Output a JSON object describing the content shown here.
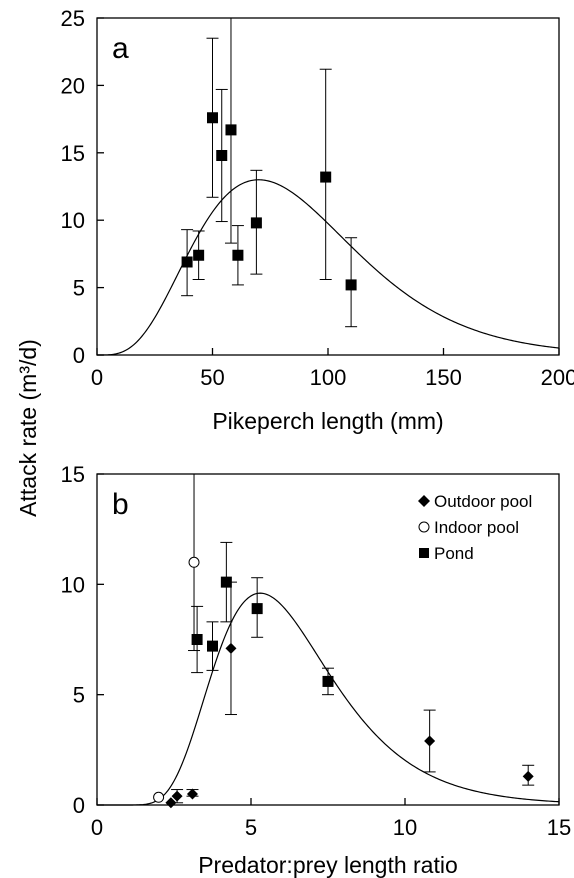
{
  "shared_ylabel": "Attack rate (m³/d)",
  "chart_data": [
    {
      "type": "scatter",
      "panel_label": "a",
      "xlabel": "Pikeperch length (mm)",
      "xlim": [
        0,
        200
      ],
      "ylim": [
        0,
        25
      ],
      "xticks": [
        0,
        50,
        100,
        150,
        200
      ],
      "yticks": [
        0,
        5,
        10,
        15,
        20,
        25
      ],
      "series": [
        {
          "marker": "square",
          "points": [
            {
              "x": 39,
              "y": 6.9,
              "lo": 4.4,
              "hi": 9.3
            },
            {
              "x": 44,
              "y": 7.4,
              "lo": 5.6,
              "hi": 9.2
            },
            {
              "x": 50,
              "y": 17.6,
              "lo": 11.7,
              "hi": 23.5
            },
            {
              "x": 54,
              "y": 14.8,
              "lo": 9.9,
              "hi": 19.7
            },
            {
              "x": 58,
              "y": 16.7,
              "lo": 8.3,
              "hi": 25.0
            },
            {
              "x": 61,
              "y": 7.4,
              "lo": 5.2,
              "hi": 9.6
            },
            {
              "x": 69,
              "y": 9.8,
              "lo": 6.0,
              "hi": 13.7
            },
            {
              "x": 99,
              "y": 13.2,
              "lo": 5.6,
              "hi": 21.2
            },
            {
              "x": 110,
              "y": 5.2,
              "lo": 2.1,
              "hi": 8.7
            }
          ]
        }
      ],
      "fit_curve": {
        "model": "gamma-like",
        "peak_x": 70,
        "peak_y": 13.0,
        "shape": 4
      }
    },
    {
      "type": "scatter",
      "panel_label": "b",
      "xlabel": "Predator:prey length ratio",
      "xlim": [
        0,
        15
      ],
      "ylim": [
        0,
        15
      ],
      "xticks": [
        0,
        5,
        10,
        15
      ],
      "yticks": [
        0,
        5,
        10,
        15
      ],
      "legend_position": "top-right",
      "series": [
        {
          "name": "Outdoor pool",
          "marker": "diamond",
          "points": [
            {
              "x": 2.4,
              "y": 0.1,
              "lo": 0.1,
              "hi": 0.1
            },
            {
              "x": 2.6,
              "y": 0.4,
              "lo": 0.1,
              "hi": 0.7
            },
            {
              "x": 3.1,
              "y": 0.5,
              "lo": 0.4,
              "hi": 0.7
            },
            {
              "x": 4.35,
              "y": 7.1,
              "lo": 4.1,
              "hi": 10.1
            },
            {
              "x": 10.8,
              "y": 2.9,
              "lo": 1.5,
              "hi": 4.3
            },
            {
              "x": 14.0,
              "y": 1.3,
              "lo": 0.9,
              "hi": 1.8
            }
          ]
        },
        {
          "name": "Indoor pool",
          "marker": "circle",
          "points": [
            {
              "x": 2.0,
              "y": 0.35,
              "lo": 0.35,
              "hi": 0.35
            },
            {
              "x": 3.15,
              "y": 11.0,
              "lo": 7.0,
              "hi": 15.0
            }
          ]
        },
        {
          "name": "Pond",
          "marker": "square",
          "points": [
            {
              "x": 3.25,
              "y": 7.5,
              "lo": 6.0,
              "hi": 9.0
            },
            {
              "x": 3.75,
              "y": 7.2,
              "lo": 6.1,
              "hi": 8.3
            },
            {
              "x": 4.2,
              "y": 10.1,
              "lo": 8.3,
              "hi": 11.9
            },
            {
              "x": 5.2,
              "y": 8.9,
              "lo": 7.6,
              "hi": 10.3
            },
            {
              "x": 7.5,
              "y": 5.6,
              "lo": 5.0,
              "hi": 6.2
            }
          ]
        }
      ],
      "fit_curve": {
        "model": "lognormal-like",
        "peak_x": 5.3,
        "peak_y": 9.6,
        "sigma": 0.36
      }
    }
  ]
}
